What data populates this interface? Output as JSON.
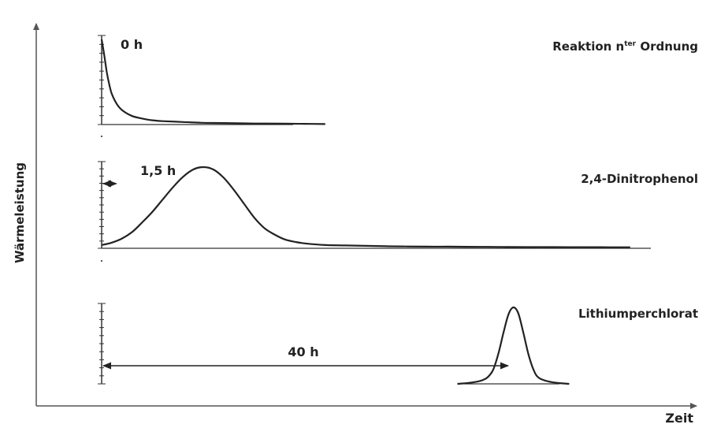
{
  "chart_data": [
    {
      "type": "line",
      "panel_label": "Reaktion n",
      "panel_label_sup": "ter",
      "panel_label_tail": " Ordnung",
      "annotation": "0 h",
      "x": [
        0,
        0.25,
        0.5,
        0.75,
        1,
        1.5,
        2,
        3,
        4,
        5,
        6,
        8,
        10,
        12,
        15,
        18,
        20,
        22
      ],
      "y": [
        1.0,
        0.82,
        0.62,
        0.47,
        0.36,
        0.24,
        0.17,
        0.1,
        0.07,
        0.05,
        0.04,
        0.03,
        0.02,
        0.018,
        0.012,
        0.01,
        0.008,
        0.006
      ]
    },
    {
      "type": "line",
      "panel_label": "2,4-Dinitrophenol",
      "annotation": "1,5 h",
      "annotation_span": [
        0,
        1.45
      ],
      "x": [
        0,
        1,
        2,
        3,
        4,
        5,
        6,
        7,
        8,
        9,
        10,
        11,
        12,
        13,
        14,
        15,
        16,
        17,
        18,
        19,
        20,
        22,
        24,
        26,
        28,
        30,
        32,
        34,
        36,
        38,
        40,
        42,
        44,
        46,
        48,
        50,
        52
      ],
      "y": [
        0.04,
        0.07,
        0.12,
        0.2,
        0.32,
        0.45,
        0.6,
        0.75,
        0.88,
        0.97,
        1.0,
        0.97,
        0.87,
        0.72,
        0.55,
        0.38,
        0.25,
        0.17,
        0.11,
        0.08,
        0.06,
        0.04,
        0.035,
        0.03,
        0.025,
        0.022,
        0.02,
        0.02,
        0.018,
        0.017,
        0.016,
        0.015,
        0.015,
        0.014,
        0.014,
        0.013,
        0.013
      ]
    },
    {
      "type": "line",
      "panel_label": "Lithiumperchlorat",
      "annotation": "40 h",
      "annotation_span": [
        0,
        40
      ],
      "x": [
        35,
        36,
        37,
        37.5,
        38,
        38.5,
        39,
        39.5,
        40,
        40.5,
        41,
        41.5,
        42,
        42.5,
        43,
        44,
        45,
        46
      ],
      "y": [
        0.0,
        0.01,
        0.03,
        0.05,
        0.09,
        0.18,
        0.38,
        0.65,
        0.9,
        1.0,
        0.92,
        0.66,
        0.38,
        0.18,
        0.08,
        0.03,
        0.01,
        0.0
      ]
    }
  ],
  "axes": {
    "xlabel": "Zeit",
    "ylabel": "Wärmeleistung"
  }
}
